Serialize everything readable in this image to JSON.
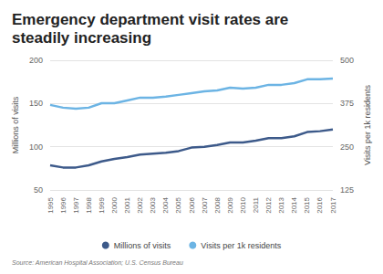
{
  "chart_data": {
    "type": "line",
    "title": "Emergency department visit rates are steadily increasing",
    "source": "Source: American Hospital Association; U.S. Census Bureau",
    "y_label": "Millions of visits",
    "y2_label": "Visits per 1k residents",
    "categories": [
      "1995",
      "1996",
      "1997",
      "1998",
      "1999",
      "2000",
      "2001",
      "2002",
      "2003",
      "2004",
      "2005",
      "2006",
      "2007",
      "2008",
      "2009",
      "2010",
      "2011",
      "2012",
      "2013",
      "2014",
      "2015",
      "2016",
      "2017"
    ],
    "series": [
      {
        "name": "Millions of visits",
        "color": "#3d5a8a",
        "values": [
          78.5,
          76,
          76,
          78.5,
          83,
          86,
          88,
          91,
          92,
          93,
          95,
          99,
          100,
          102,
          105,
          105,
          107,
          110,
          110,
          112,
          117,
          118,
          120
        ]
      },
      {
        "name": "Visits per 1k residents",
        "color": "#6cb4e4",
        "axis": "y2",
        "values": [
          371,
          363,
          360,
          363,
          376,
          376,
          384,
          392,
          392,
          395,
          400,
          405,
          410,
          413,
          421,
          418,
          421,
          429,
          429,
          434,
          445,
          445,
          447
        ]
      }
    ],
    "ylim": [
      50,
      200
    ],
    "yticks": [
      50,
      100,
      150,
      200
    ],
    "y2lim": [
      125,
      500
    ],
    "y2ticks": [
      125,
      250,
      375,
      500
    ],
    "grid": true,
    "legend": "bottom"
  }
}
